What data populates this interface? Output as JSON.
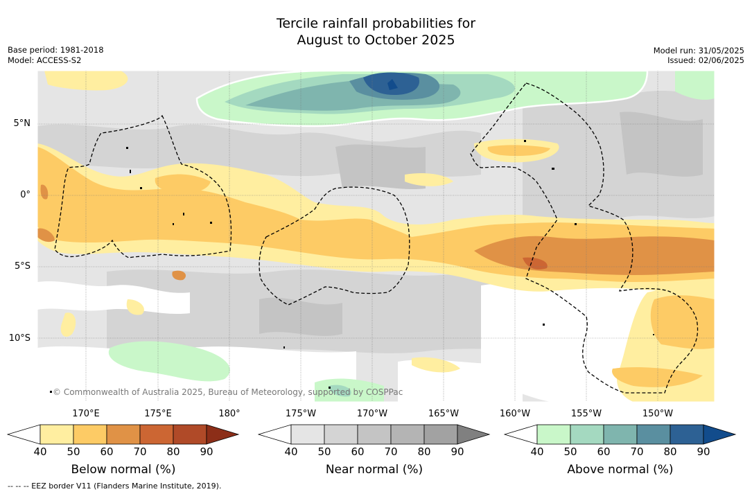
{
  "title_line1": "Tercile rainfall probabilities for",
  "title_line2": "August to October 2025",
  "base_period": "Base period: 1981-2018",
  "model": "Model: ACCESS-S2",
  "model_run": "Model run: 31/05/2025",
  "issued": "Issued: 02/06/2025",
  "copyright": "© Commonwealth of Australia 2025, Bureau of Meteorology, supported by COSPPac",
  "map": {
    "lon_labels": [
      "170°E",
      "175°E",
      "180°",
      "175°W",
      "170°W",
      "165°W",
      "160°W",
      "155°W",
      "150°W"
    ],
    "lat_labels": [
      "5°N",
      "0°",
      "5°S",
      "10°S"
    ],
    "lon_range": [
      167,
      214.5
    ],
    "lat_range": [
      -14.5,
      8.5
    ]
  },
  "colorbars": [
    {
      "title": "Below normal (%)",
      "ticks": [
        "40",
        "50",
        "60",
        "70",
        "80",
        "90"
      ],
      "colors": [
        "#ffffff",
        "#ffeea0",
        "#fdcb65",
        "#e09246",
        "#cc6633",
        "#b04a28",
        "#8c2e18"
      ]
    },
    {
      "title": "Near normal (%)",
      "ticks": [
        "40",
        "50",
        "60",
        "70",
        "80",
        "90"
      ],
      "colors": [
        "#ffffff",
        "#e5e5e5",
        "#d4d4d4",
        "#c4c4c4",
        "#b4b4b4",
        "#a2a2a2",
        "#808080"
      ]
    },
    {
      "title": "Above normal (%)",
      "ticks": [
        "40",
        "50",
        "60",
        "70",
        "80",
        "90"
      ],
      "colors": [
        "#ffffff",
        "#c9f7c9",
        "#a4d9c0",
        "#7fb5ae",
        "#5a8fa0",
        "#2d6194",
        "#124c8c"
      ]
    }
  ],
  "footnote": "--  --  -- EEZ border V11 (Flanders Marine Institute, 2019)."
}
